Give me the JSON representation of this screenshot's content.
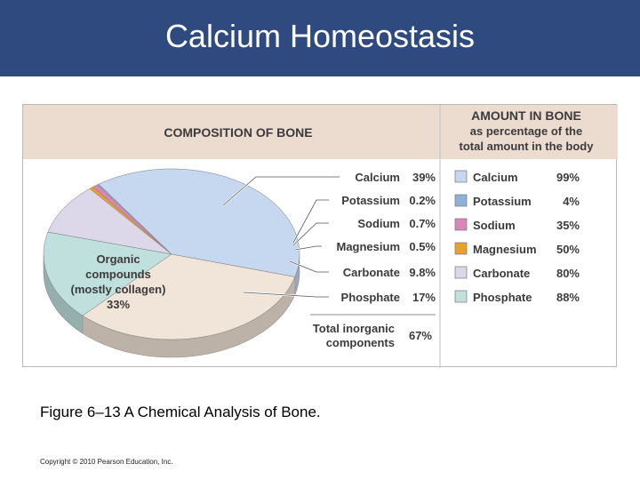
{
  "slide": {
    "title": "Calcium Homeostasis",
    "caption": "Figure 6–13 A Chemical Analysis of Bone.",
    "copyright": "Copyright © 2010 Pearson Education, Inc."
  },
  "colors": {
    "header": "#2e4a7e",
    "band": "#ecdcd0",
    "calcium": "#c5d8ef",
    "potassium": "#8fb0d9",
    "sodium": "#d887b8",
    "magnesium": "#e8a12c",
    "carbonate": "#ddd7ea",
    "phosphate": "#bfe0dd",
    "organic": "#f1e4d8"
  },
  "chart_data": {
    "type": "pie",
    "title": "COMPOSITION OF BONE",
    "slices": [
      {
        "label": "Calcium",
        "value": 39,
        "display": "39%",
        "color_key": "calcium"
      },
      {
        "label": "Potassium",
        "value": 0.2,
        "display": "0.2%",
        "color_key": "potassium"
      },
      {
        "label": "Sodium",
        "value": 0.7,
        "display": "0.7%",
        "color_key": "sodium"
      },
      {
        "label": "Magnesium",
        "value": 0.5,
        "display": "0.5%",
        "color_key": "magnesium"
      },
      {
        "label": "Carbonate",
        "value": 9.8,
        "display": "9.8%",
        "color_key": "carbonate"
      },
      {
        "label": "Phosphate",
        "value": 17,
        "display": "17%",
        "color_key": "phosphate"
      },
      {
        "label": "Organic compounds (mostly collagen)",
        "value": 33,
        "display": "33%",
        "color_key": "organic"
      }
    ],
    "organic_label_lines": [
      "Organic",
      "compounds",
      "(mostly collagen)",
      "33%"
    ],
    "total_inorganic": {
      "label_lines": [
        "Total inorganic",
        "components"
      ],
      "value": 67,
      "display": "67%"
    },
    "amount_table": {
      "header_lines": [
        "AMOUNT IN BONE",
        "as percentage of the",
        "total amount in the body"
      ],
      "rows": [
        {
          "label": "Calcium",
          "value": 99,
          "display": "99%",
          "color_key": "calcium"
        },
        {
          "label": "Potassium",
          "value": 4,
          "display": "4%",
          "color_key": "potassium"
        },
        {
          "label": "Sodium",
          "value": 35,
          "display": "35%",
          "color_key": "sodium"
        },
        {
          "label": "Magnesium",
          "value": 50,
          "display": "50%",
          "color_key": "magnesium"
        },
        {
          "label": "Carbonate",
          "value": 80,
          "display": "80%",
          "color_key": "carbonate"
        },
        {
          "label": "Phosphate",
          "value": 88,
          "display": "88%",
          "color_key": "phosphate"
        }
      ]
    }
  }
}
